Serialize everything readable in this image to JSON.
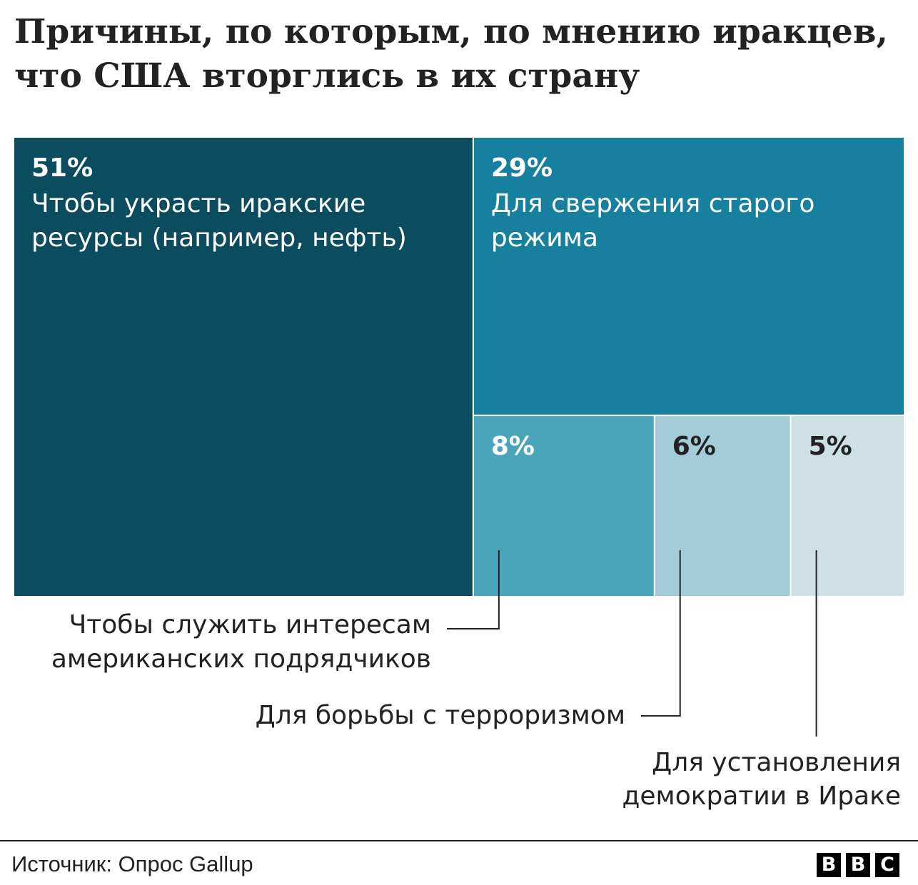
{
  "title_lines": [
    "Причины, по которым, по мнению иракцев,",
    "что США вторглись в их страну"
  ],
  "chart_data": {
    "type": "treemap",
    "title": "Причины, по которым, по мнению иракцев, что США вторглись в их страну",
    "unit": "%",
    "items": [
      {
        "value": 51,
        "label": "51%",
        "category_lines": [
          "Чтобы украсть иракские",
          "ресурсы (например, нефть)"
        ],
        "color": "#0b4d5e",
        "text_color": "#ffffff",
        "label_position": "inside"
      },
      {
        "value": 29,
        "label": "29%",
        "category_lines": [
          "Для свержения старого",
          "режима"
        ],
        "color": "#16809e",
        "text_color": "#ffffff",
        "label_position": "inside"
      },
      {
        "value": 8,
        "label": "8%",
        "category_lines": [
          "Чтобы служить интересам",
          "американских подрядчиков"
        ],
        "color": "#4aa5bb",
        "text_color": "#ffffff",
        "label_position": "outside"
      },
      {
        "value": 6,
        "label": "6%",
        "category_lines": [
          "Для борьбы с терроризмом"
        ],
        "color": "#a3cbd8",
        "text_color": "#222222",
        "label_position": "outside"
      },
      {
        "value": 5,
        "label": "5%",
        "category_lines": [
          "Для установления",
          "демократии в Ираке"
        ],
        "color": "#cde0e5",
        "text_color": "#222222",
        "label_position": "outside"
      }
    ]
  },
  "footer": {
    "source": "Источник: Опрос Gallup",
    "logo_letters": [
      "B",
      "B",
      "C"
    ]
  }
}
